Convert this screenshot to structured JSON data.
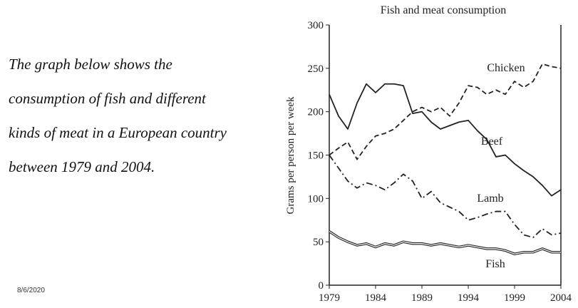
{
  "intro_lines": [
    "The graph below shows the",
    "consumption of fish and different",
    "kinds of meat in a European country",
    "between 1979 and 2004."
  ],
  "date": "8/6/2020",
  "chart_data": {
    "type": "line",
    "title": "Fish and meat consumption",
    "y_label": "Grams per person per week",
    "x": [
      1979,
      1980,
      1981,
      1982,
      1983,
      1984,
      1985,
      1986,
      1987,
      1988,
      1989,
      1990,
      1991,
      1992,
      1993,
      1994,
      1995,
      1996,
      1997,
      1998,
      1999,
      2000,
      2001,
      2002,
      2003,
      2004
    ],
    "xlim": [
      1979,
      2004
    ],
    "xticks": [
      1979,
      1984,
      1989,
      1994,
      1999,
      2004
    ],
    "ylim": [
      0,
      300
    ],
    "yticks": [
      0,
      50,
      100,
      150,
      200,
      250,
      300
    ],
    "series": [
      {
        "name": "Chicken",
        "color": "#222222",
        "style": "dashed",
        "values": [
          150,
          158,
          165,
          145,
          160,
          172,
          175,
          180,
          190,
          200,
          205,
          200,
          205,
          195,
          210,
          230,
          228,
          220,
          225,
          220,
          235,
          228,
          235,
          255,
          252,
          250
        ]
      },
      {
        "name": "Beef",
        "color": "#222222",
        "style": "solid",
        "values": [
          220,
          195,
          180,
          210,
          232,
          222,
          232,
          232,
          230,
          198,
          200,
          188,
          180,
          184,
          188,
          190,
          178,
          168,
          148,
          150,
          140,
          132,
          125,
          115,
          103,
          110
        ]
      },
      {
        "name": "Lamb",
        "color": "#222222",
        "style": "dashdot",
        "values": [
          150,
          135,
          120,
          112,
          118,
          115,
          110,
          118,
          128,
          120,
          100,
          108,
          95,
          90,
          85,
          75,
          78,
          82,
          85,
          85,
          70,
          58,
          55,
          65,
          58,
          60
        ]
      },
      {
        "name": "Fish",
        "color": "#222222",
        "style": "double",
        "values": [
          62,
          55,
          50,
          46,
          48,
          44,
          48,
          46,
          50,
          48,
          48,
          46,
          48,
          46,
          44,
          46,
          44,
          42,
          42,
          40,
          36,
          38,
          38,
          42,
          38,
          38
        ]
      }
    ]
  }
}
